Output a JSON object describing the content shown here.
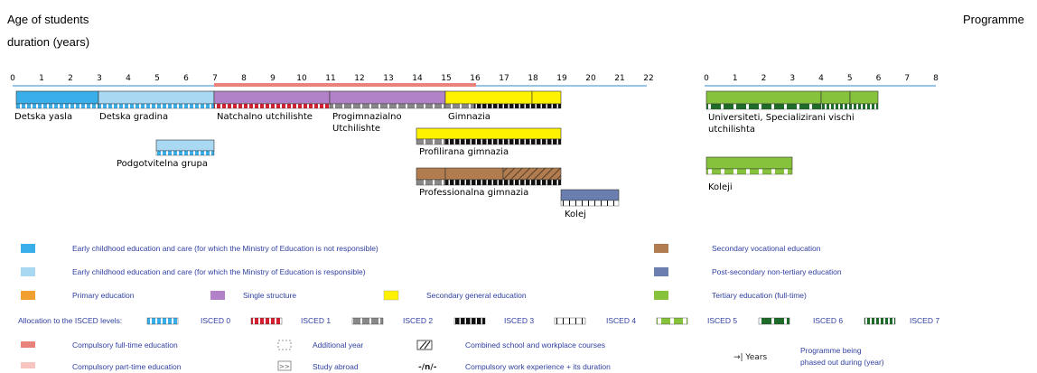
{
  "header": {
    "left_line1": "Age of students",
    "left_line2": "duration (years)",
    "right_title": "Programme"
  },
  "axis_left": {
    "ticks": [
      "0",
      "1",
      "2",
      "3",
      "4",
      "5",
      "6",
      "7",
      "8",
      "9",
      "10",
      "11",
      "12",
      "13",
      "14",
      "15",
      "16",
      "17",
      "18",
      "19",
      "20",
      "21",
      "22"
    ]
  },
  "axis_right": {
    "ticks": [
      "0",
      "1",
      "2",
      "3",
      "4",
      "5",
      "6",
      "7",
      "8"
    ]
  },
  "programmes": [
    {
      "id": "detska-yasla",
      "label": "Detska yasla",
      "color": "#3aaee8"
    },
    {
      "id": "detska-gradina",
      "label": "Detska gradina",
      "color": "#a9d8f2"
    },
    {
      "id": "natchalno",
      "label": "Natchalno utchilishte",
      "color": "#b282c8"
    },
    {
      "id": "progimnazialno",
      "label": "Progimnazialno",
      "label2": "Utchilishte",
      "color": "#b282c8"
    },
    {
      "id": "gimnazia",
      "label": "Gimnazia",
      "color": "#fff200"
    },
    {
      "id": "podgotvitelna",
      "label": "Podgotvitelna grupa",
      "color": "#a9d8f2"
    },
    {
      "id": "profilirana",
      "label": "Profilirana gimnazia",
      "color": "#fff200"
    },
    {
      "id": "professionalna",
      "label": "Professionalna gimnazia",
      "color": "#b07c50"
    },
    {
      "id": "kolej",
      "label": "Kolej",
      "color": "#6a7fb0"
    },
    {
      "id": "universiteti",
      "label": "Universiteti, Specializirani vischi",
      "label2": "utchilishta",
      "color": "#86c23c"
    },
    {
      "id": "koleji",
      "label": "Koleji",
      "color": "#86c23c"
    }
  ],
  "legend": {
    "ecec_not_responsible": "Early childhood education and care (for which the Ministry of Education is not responsible)",
    "ecec_responsible": "Early childhood education and care (for which the Ministry of Education is responsible)",
    "primary": "Primary education",
    "single_structure": "Single structure",
    "secondary_general": "Secondary general education",
    "secondary_vocational": "Secondary vocational education",
    "post_secondary": "Post-secondary non-tertiary education",
    "tertiary": "Tertiary education (full-time)",
    "isced_title": "Allocation to the ISCED levels:",
    "isced_levels": [
      "ISCED 0",
      "ISCED 1",
      "ISCED 2",
      "ISCED 3",
      "ISCED 4",
      "ISCED 5",
      "ISCED 6",
      "ISCED 7"
    ],
    "compulsory_full": "Compulsory full-time education",
    "compulsory_part": "Compulsory part-time education",
    "additional_year": "Additional year",
    "study_abroad": "Study abroad",
    "combined": "Combined school and workplace courses",
    "work_exp": "Compulsory work experience + its duration",
    "work_exp_symbol": "-/n/-",
    "years_symbol": "→| Years",
    "phased_out_1": "Programme being",
    "phased_out_2": "phased out during (year)"
  },
  "colors": {
    "ecec_not": "#3aaee8",
    "ecec_resp": "#a9d8f2",
    "primary": "#f0a030",
    "single": "#b282c8",
    "sec_general": "#fff200",
    "sec_voc": "#b07c50",
    "post_sec": "#6a7fb0",
    "tertiary": "#86c23c",
    "compulsory_full": "#e8827a",
    "compulsory_part": "#f7c4c0",
    "axis_line": "#5aa0d8"
  }
}
